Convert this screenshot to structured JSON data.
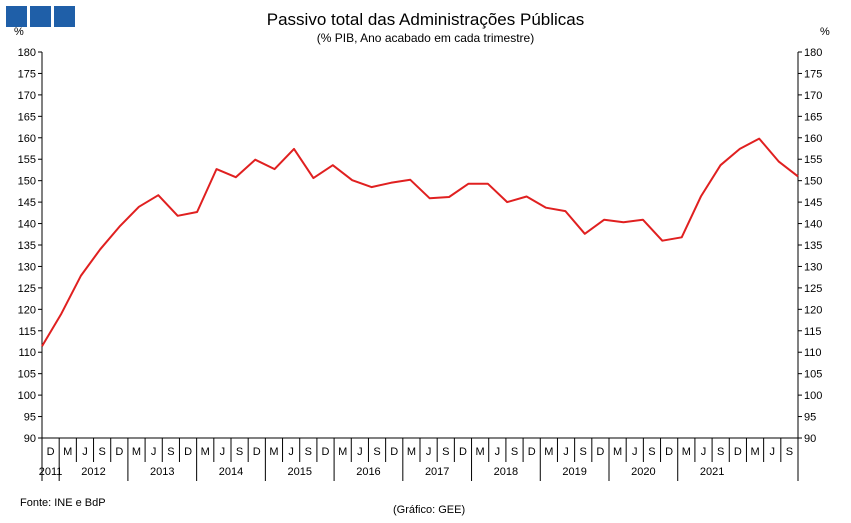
{
  "header": {
    "title": "Passivo total das Administrações Públicas",
    "subtitle": "(% PIB, Ano acabado em cada trimestre)",
    "unit_left": "%",
    "unit_right": "%"
  },
  "footer": {
    "source": "Fonte: INE e BdP",
    "credit": "(Gráfico: GEE)"
  },
  "colors": {
    "line": "#e02020",
    "logo": "#1f5fa8",
    "axis": "#000000"
  },
  "chart_data": {
    "type": "line",
    "title": "Passivo total das Administrações Públicas",
    "subtitle": "(% PIB, Ano acabado em cada trimestre)",
    "ylabel": "%",
    "ylim": [
      90,
      180
    ],
    "ytick_step": 5,
    "grid": false,
    "quarter_labels": [
      "D",
      "M",
      "J",
      "S",
      "D",
      "M",
      "J",
      "S",
      "D",
      "M",
      "J",
      "S",
      "D",
      "M",
      "J",
      "S",
      "D",
      "M",
      "J",
      "S",
      "D",
      "M",
      "J",
      "S",
      "D",
      "M",
      "J",
      "S",
      "D",
      "M",
      "J",
      "S",
      "D",
      "M",
      "J",
      "S",
      "D",
      "M",
      "J",
      "S",
      "D",
      "M",
      "J",
      "S"
    ],
    "year_labels": [
      "2011",
      "2012",
      "2013",
      "2014",
      "2015",
      "2016",
      "2017",
      "2018",
      "2019",
      "2020",
      "2021"
    ],
    "series": [
      {
        "values": [
          111.4,
          119.0,
          127.8,
          134.0,
          139.3,
          143.9,
          146.6,
          141.8,
          142.7,
          152.7,
          150.8,
          154.9,
          152.7,
          157.4,
          150.6,
          153.6,
          150.1,
          148.5,
          149.5,
          150.2,
          145.9,
          146.2,
          149.3,
          149.3,
          145.0,
          146.3,
          143.7,
          142.9,
          137.6,
          140.9,
          140.3,
          140.9,
          136.0,
          136.8,
          146.4,
          153.6,
          157.4,
          159.8,
          154.5,
          151.0
        ]
      }
    ]
  }
}
